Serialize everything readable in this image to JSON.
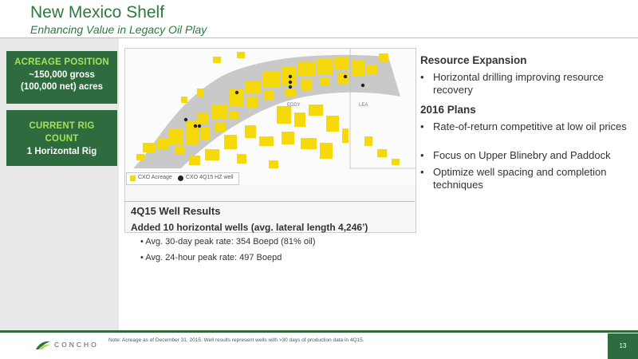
{
  "header": {
    "title": "New Mexico Shelf",
    "subtitle": "Enhancing Value in Legacy Oil Play"
  },
  "left_panel": {
    "acreage": {
      "heading": "ACREAGE POSITION",
      "line1": "~150,000 gross",
      "line2": "(100,000 net) acres"
    },
    "rig": {
      "heading_line1": "CURRENT RIG",
      "heading_line2": "COUNT",
      "value": "1 Horizontal Rig"
    }
  },
  "map": {
    "county_labels": [
      "EDDY",
      "LEA"
    ],
    "legend": [
      {
        "label": "CXO Acreage",
        "color": "#f5d90a"
      },
      {
        "label": "CXO 4Q15 HZ well",
        "color": "#222222"
      }
    ]
  },
  "well_results": {
    "title": "4Q15 Well Results",
    "summary": "Added 10 horizontal wells (avg. lateral length 4,246’)",
    "bullets": [
      "Avg. 30-day peak rate: 354 Boepd (81% oil)",
      "Avg. 24-hour peak rate: 497 Boepd"
    ]
  },
  "resource_expansion": {
    "title": "Resource Expansion",
    "bullets": [
      "Horizontal drilling improving resource recovery"
    ]
  },
  "plans_2016": {
    "title": "2016 Plans",
    "bullets": [
      "Rate-of-return competitive at low oil prices",
      "Focus on Upper Blinebry and Paddock",
      "Optimize well spacing and completion techniques"
    ]
  },
  "footer": {
    "note": "Note: Acreage as of December 31, 2015. Well results represent wells with >30 days of production data in 4Q15.",
    "logo": "CONCHO",
    "page_number": "13"
  },
  "colors": {
    "brand_green": "#2e6b3e",
    "accent_green": "#a7e05a",
    "acreage_yellow": "#f5d90a"
  }
}
